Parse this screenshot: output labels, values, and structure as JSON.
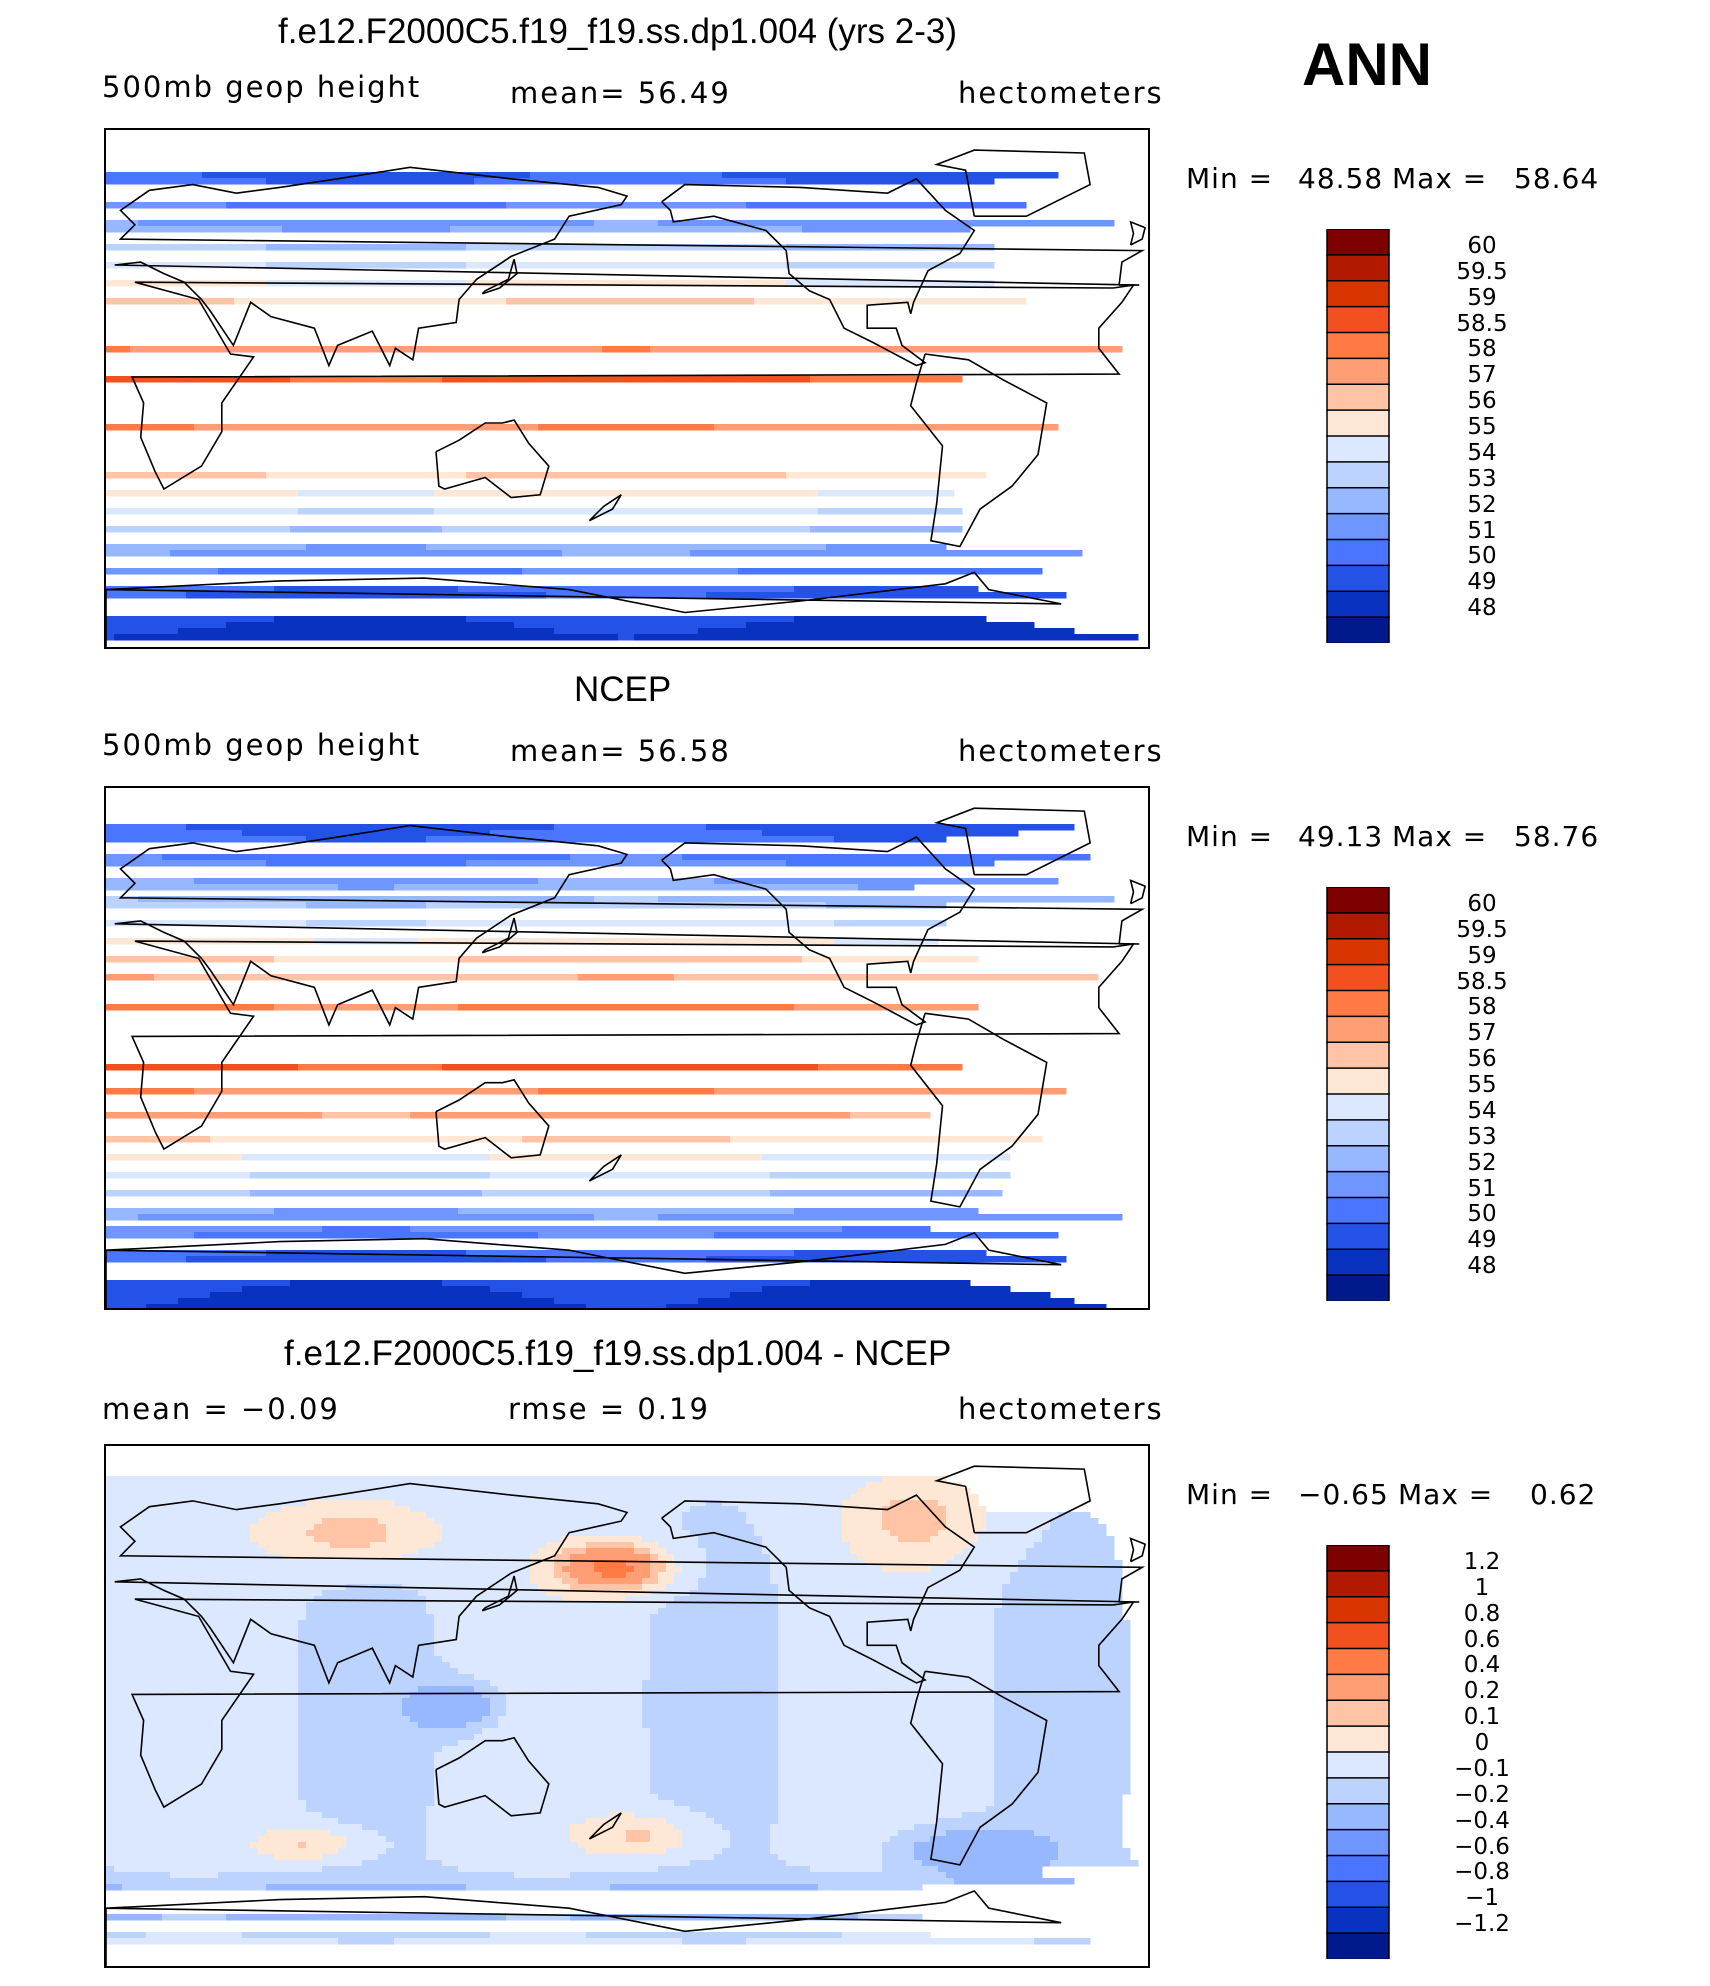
{
  "season": "ANN",
  "panels": [
    {
      "title": "f.e12.F2000C5.f19_f19.ss.dp1.004 (yrs 2-3)",
      "left_label": "500mb  geop  height",
      "center_label": "mean=   56.49",
      "units": "hectometers",
      "min_label": "Min  =",
      "min_value": "48.58",
      "max_label": "Max  =",
      "max_value": "58.64",
      "field": "model",
      "colorbar_labels": [
        "60",
        "59.5",
        "59",
        "58.5",
        "58",
        "57",
        "56",
        "55",
        "54",
        "53",
        "52",
        "51",
        "50",
        "49",
        "48"
      ]
    },
    {
      "title": "NCEP",
      "left_label": "500mb  geop  height",
      "center_label": "mean=   56.58",
      "units": "hectometers",
      "min_label": "Min  =",
      "min_value": "49.13",
      "max_label": "Max  =",
      "max_value": "58.76",
      "field": "obs",
      "colorbar_labels": [
        "60",
        "59.5",
        "59",
        "58.5",
        "58",
        "57",
        "56",
        "55",
        "54",
        "53",
        "52",
        "51",
        "50",
        "49",
        "48"
      ]
    },
    {
      "title": "f.e12.F2000C5.f19_f19.ss.dp1.004 - NCEP",
      "left_label": "mean  =    −0.09",
      "center_label": "rmse  =     0.19",
      "units": "hectometers",
      "min_label": "Min  =",
      "min_value": "−0.65",
      "max_label": "Max  =",
      "max_value": "0.62",
      "field": "diff",
      "colorbar_labels": [
        "1.2",
        "1",
        "0.8",
        "0.6",
        "0.4",
        "0.2",
        "0.1",
        "0",
        "−0.1",
        "−0.2",
        "−0.4",
        "−0.6",
        "−0.8",
        "−1",
        "−1.2"
      ]
    }
  ],
  "colorbar_colors": [
    "#7f0000",
    "#b21a00",
    "#d93500",
    "#f2501f",
    "#ff7a45",
    "#ff9e74",
    "#ffc3a5",
    "#ffe7d6",
    "#dce8ff",
    "#bcd2ff",
    "#97b8ff",
    "#6f96ff",
    "#4a75ff",
    "#2452e6",
    "#0a32c0",
    "#001a8c"
  ]
}
